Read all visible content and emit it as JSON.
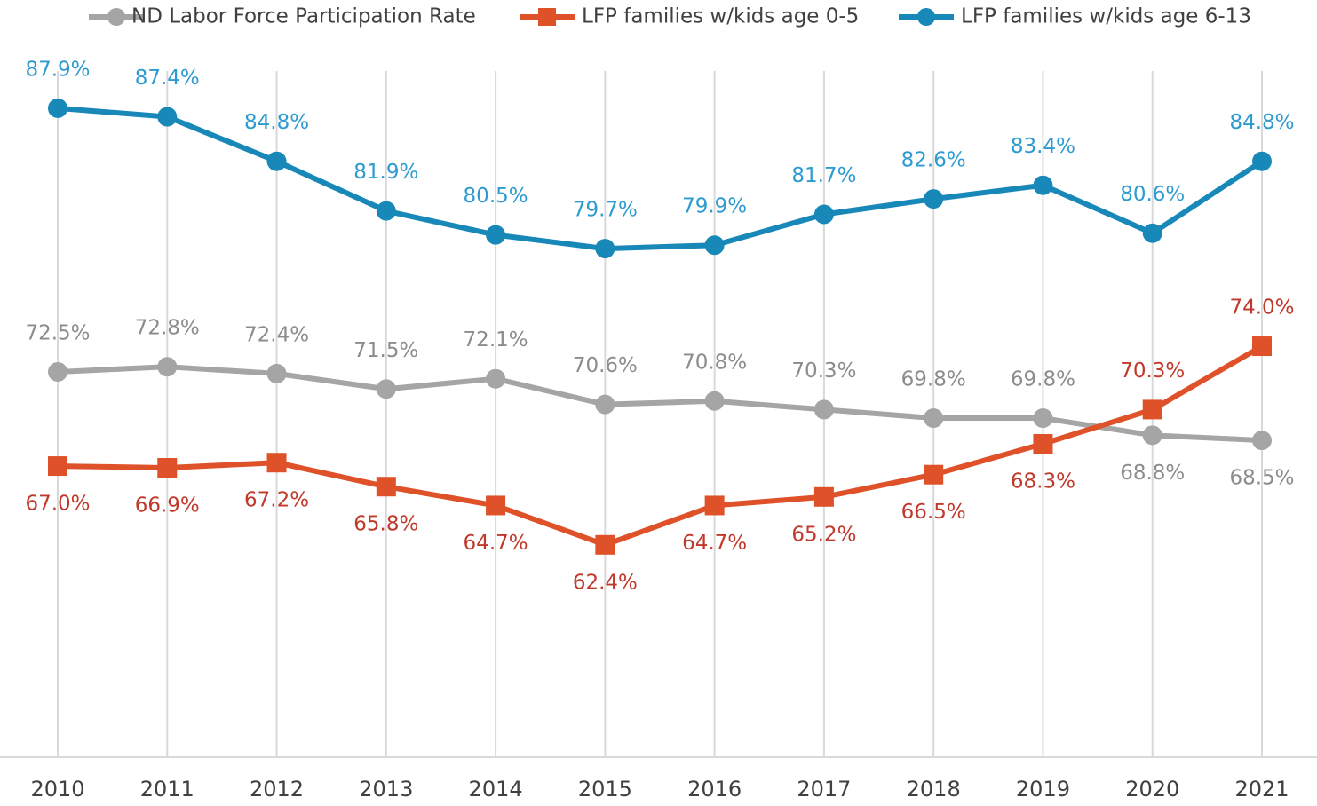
{
  "chart_data": {
    "type": "line",
    "categories": [
      "2010",
      "2011",
      "2012",
      "2013",
      "2014",
      "2015",
      "2016",
      "2017",
      "2018",
      "2019",
      "2020",
      "2021"
    ],
    "series": [
      {
        "name": "ND Labor Force Participation Rate",
        "color": "#a5a5a5",
        "marker": "circle",
        "values": [
          72.5,
          72.8,
          72.4,
          71.5,
          72.1,
          70.6,
          70.8,
          70.3,
          69.8,
          69.8,
          68.8,
          68.5
        ],
        "value_labels": [
          "72.5%",
          "72.8%",
          "72.4%",
          "71.5%",
          "72.1%",
          "70.6%",
          "70.8%",
          "70.3%",
          "69.8%",
          "69.8%",
          "68.8%",
          "68.5%"
        ]
      },
      {
        "name": "LFP families w/kids age 0-5",
        "color": "#de5129",
        "marker": "square",
        "values": [
          67.0,
          66.9,
          67.2,
          65.8,
          64.7,
          62.4,
          64.7,
          65.2,
          66.5,
          68.3,
          70.3,
          74.0
        ],
        "value_labels": [
          "67.0%",
          "66.9%",
          "67.2%",
          "65.8%",
          "64.7%",
          "62.4%",
          "64.7%",
          "65.2%",
          "66.5%",
          "68.3%",
          "70.3%",
          "74.0%"
        ]
      },
      {
        "name": "LFP families w/kids age 6-13",
        "color": "#1788b8",
        "marker": "circle",
        "values": [
          87.9,
          87.4,
          84.8,
          81.9,
          80.5,
          79.7,
          79.9,
          81.7,
          82.6,
          83.4,
          80.6,
          84.8
        ],
        "value_labels": [
          "87.9%",
          "87.4%",
          "84.8%",
          "81.9%",
          "80.5%",
          "79.7%",
          "79.9%",
          "81.7%",
          "82.6%",
          "83.4%",
          "80.6%",
          "84.8%"
        ]
      }
    ],
    "ylim": [
      50,
      95
    ],
    "grid": true,
    "legend": "top"
  }
}
